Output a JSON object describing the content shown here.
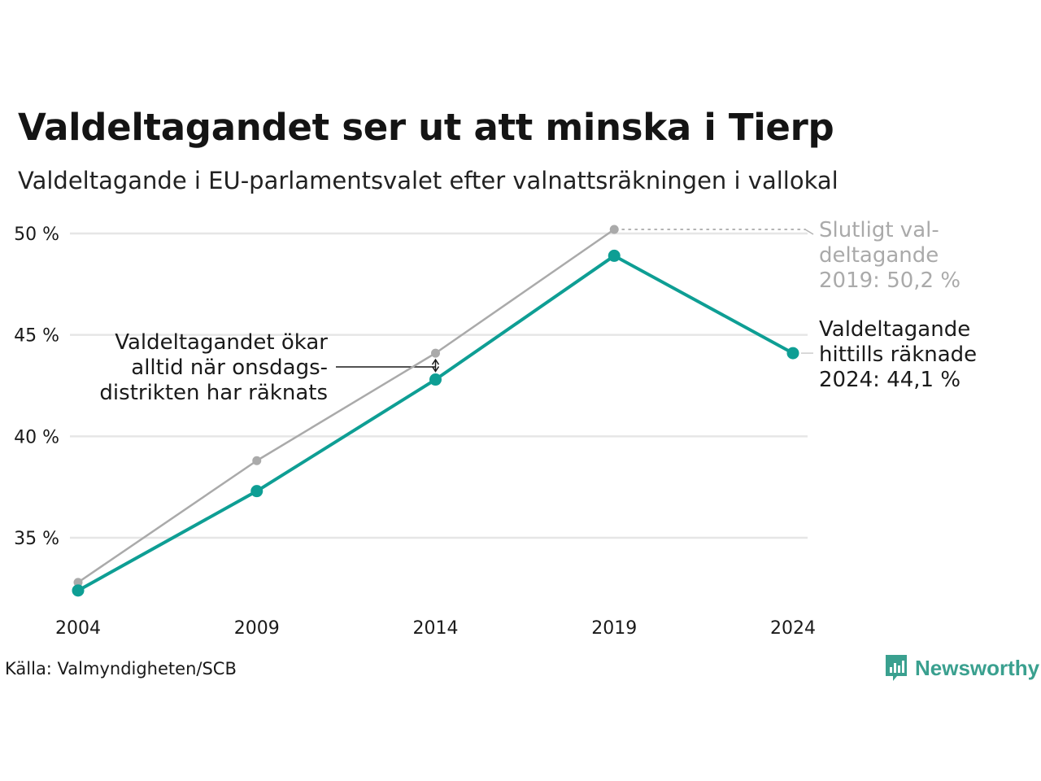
{
  "header": {
    "title": "Valdeltagandet ser ut att minska i Tierp",
    "subtitle": "Valdeltagande i EU-parlamentsvalet efter valnattsräkningen i vallokal"
  },
  "footer": {
    "source": "Källa: Valmyndigheten/SCB",
    "brand": "Newsworthy"
  },
  "colors": {
    "final_series": "#aaaaaa",
    "preliminary_series": "#0e9e94",
    "grid": "#e6e6e6",
    "brand": "#3aa08f"
  },
  "chart_data": {
    "type": "line",
    "x": [
      "2004",
      "2009",
      "2014",
      "2019",
      "2024"
    ],
    "ylim": [
      31,
      51.5
    ],
    "yticks": [
      35,
      40,
      45,
      50
    ],
    "ytick_labels": [
      "35 %",
      "40 %",
      "45 %",
      "50 %"
    ],
    "grid": "horizontal",
    "series": [
      {
        "key": "final",
        "values": [
          32.8,
          38.8,
          44.1,
          50.2,
          null
        ]
      },
      {
        "key": "preliminary",
        "values": [
          32.4,
          37.3,
          42.8,
          48.9,
          44.1
        ]
      }
    ],
    "annotations": {
      "final_2019": [
        "Slutligt val-",
        "deltagande",
        "2019: 50,2 %"
      ],
      "preliminary_2024": [
        "Valdeltagande",
        "hittills räknade",
        "2024: 44,1 %"
      ],
      "wednesday_note": [
        "Valdeltagandet ökar",
        "alltid när onsdags-",
        "distrikten har räknats"
      ]
    }
  }
}
